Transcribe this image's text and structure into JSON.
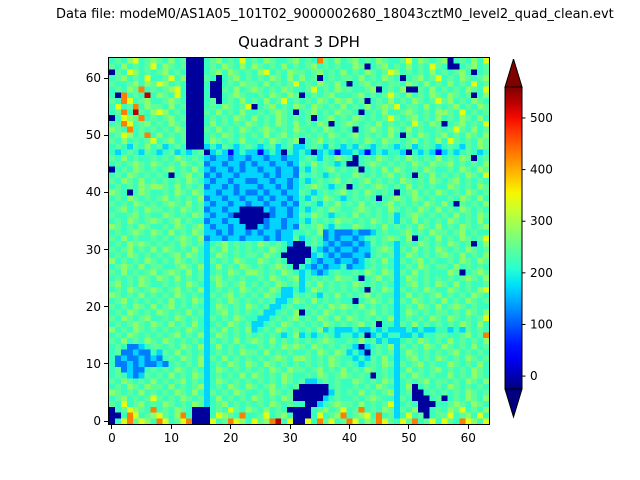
{
  "figure": {
    "annotation": "Data file: modeM0/AS1A05_101T02_9000002680_18043cztM0_level2_quad_clean.evt"
  },
  "chart_data": {
    "type": "heatmap",
    "title": "Quadrant 3 DPH",
    "xlabel": "",
    "ylabel": "",
    "x_ticks": [
      0,
      10,
      20,
      30,
      40,
      50,
      60
    ],
    "y_ticks": [
      0,
      10,
      20,
      30,
      40,
      50,
      60
    ],
    "x_range": [
      0,
      63
    ],
    "y_range": [
      0,
      63
    ],
    "colormap": "jet",
    "vmin": -25,
    "vmax": 560,
    "colorbar": {
      "ticks": [
        0,
        100,
        200,
        300,
        400,
        500
      ],
      "extend": "both"
    },
    "grid": {
      "ncols": 64,
      "nrows": 64,
      "value_map": {
        "N": -10,
        "D": 40,
        "B": 120,
        "m": 170,
        "c": 220,
        "t": 245,
        "g": 280,
        "y": 340,
        "o": 430,
        "r": 530
      },
      "rows_top_to_bottom": [
        "ctcgyctgtcgctNNNctgctcyctcgtcctgctcotcgctgctcgtcctycgtctgNctcgcy",
        "tcgctctycgtctNNNctcgtcgcgtctcgctctgctctccgtNctgctcgctcytcNNctgct",
        "NtcygctctgctcNNNctgcgtctcgyctcgttctgctcgctcgtctygctctcgctctgcNct",
        "ctgctcycctycgNNNtcNctgctctcgtcgcgctNctcttcgctcgtcNctgctyctcgtctg",
        "tcctgcgtygctcNNNcNNctcgttcgctctyctcgtcgcNctgctcttcgtcgctcgctcyct",
        "ctcgtoctctgycNNNcNNtcgctgtctcgtcctyctcgttcctgNctcgNNtcgctctcgtcy",
        "cNoctcrcgtcycNNNcNNctgtcctcgtcgtNctctgccctgctctytcgctcgtcgtctNcg",
        "tcoyctgcctgtcNNNctNctcgctcgctyctctcgtcgtgctNctcgctcgtctytgctcgtc",
        "cyctocgttcgctNNNctcgtctyNctgctcgtcgtctcgctcgctgtycttcgctctgctcgt",
        "ctocrtcgygctcNNNtcgctcgcctctgtcNctgctcgttcNctcgcctgtctcggtcyctct",
        "NcygtoctctgctNNNctctcgtcgctcgtctctNctgctcgtctctytctgctcgctcgtcgc",
        "ctoyctgctcgtcNNNcgctctcgtctcgtcgctcgtNctgtctcgctctcytcgtNctgctcy",
        "gtcoctctctcgtNNNtcgctcgtctgtctcgtctcgtctcNctgtcgtcgctcctctytcgct",
        "ctygctocgctctNNNctcgtctctcgctgctctctcgtctgctctcgcNtcgtctgctcgtcg",
        "tcgctctyctgctNNNcgtctcgcctcgtctgNctgctctctcgtcgttctgctcgcytctcgt",
        "ctcmtcgctmctcNNNmcmtcmctcmctmctmmctcmtcmcmtcmctcmctmctcmctcmtcgt",
        "cmctcmtcmctmcmctNmcmDmcmmDmcmNcmcmNmcmDmmcmDmcmccmNcmcmDmcmctcmc",
        "tcgctcctctcgtctcmBmmBmmBmmBmmBmmctcmtcgtcNctcgtctcgtctcgctcgtNct",
        "ctctgtcgtctcgtctBmmBmmBmBmmBmmBmtcgctcmcNNctgtctctcgtcgttgctctcg",
        "NctcgtctctgctcgcmBmmBmBmmBmmBmmBcmtctgctctNctcgcgtctcgtcctcgtcgt",
        "ctcgtctctcNctgctBmBmmBmmmmBmBmmBtctcmctccgtctctgctcNtcgctctcgtcy",
        "tcgtcgctctctcgtcmBmmBmmBBmmBmmBmcmctctgctctgctctcgtctcgtctgctctc",
        "ctctcgtggtcgctctBmmBmBmmmBmmBmBmctgtcmctNctctgtctcgctctccgtctcgt",
        "gtcNcgtcctcgtcgtmmBmmBmBBmBmmBmmtcmctctgctcgtctcNctgctcgtctcgtct",
        "ctcgtctctgctctcgBmmBmmBmmBmBmmBmcmtcgtcmctctcNctgtcgtctcctcgtcgc",
        "tctcgtctctgtcgctmBmmBmmBmmBmmBmBctcmtcgctcgctctgctctcgtcgcNtctcg",
        "ctgctcgttctcgtctBmmBmmNNNNmBmmBmcmctcgtcctgtctcgtctcgtcgctcgtctc",
        "tcctgctccgtctcgtmBmmBNNNNNNBmmBmtcgtcmctcgctctctmctgtctctcgctcgt",
        "ctcgtctgtctgctccBmmBmmNNNNBmmBmmcmtctcgttctcgtctmtcgctctcgtctcgc",
        "gtctcgtcctcgtctgmBmmBmmNNmBmmBmBtctgcmtccgtctcgctctcgtcgctcgtctg",
        "ctctgtcgtcgctcgtmmBmBmmBmBmmBmmcctcgBmBBBmBBmctcctgctcgttctgctcc",
        "tcgctcctctctgtcgBmmBmmBmmmBmBmmtmctcBmBmmBmctctgtcgNctcgctcgtcty",
        "ctcgtgtctctcgtctmctgctctcgtctcmNNctcmBmBBmBmtctcmctcgtctcgtctNcg",
        "tctgctcgcgtctcgcmtcgctctctcgtcNNNNcmBmBmmBmmctgtmtcgctcgtctcgtct",
        "ctcgtctctctgcgtcmcgtctcttcgtcNNNNNmcmBmBBmmBctctmcgtctctgtcgctcg",
        "gctctcgtctcgtctcmtctcgtccgtctcNNNcmBmmBmmBmctcgcmtctgctcctcgtcgt",
        "ctgtcgcttcctgtcgmcgctcgtctctgtcNcmBmBmmcBmmctctcmctcgtcttcgctctc",
        "tcgctctgctgtcgctmctcgtcggtctcgtcmcmBmctcctcgtcgtmtcgctcccgtNctgt",
        "ctctcgtcgtcgctctmtgctctcctcgtctgmctctcgttcNctgctmcgtctctctctgtcg",
        "tgctcgtcctctcgtcmcgtctgctctcgtctmtcgctctcgtctctcmctgctcgtcgctcct",
        "ctcgtctgtctgctcgmctctcgtctcgtmmcmcgtctctctcNtcgtmtctcgtccgtctcgy",
        "gtctcgctctcgtctcmtctgctctcgtcmmtctcmtcgctctgctccmcgctctgctctcgtc",
        "ctgctctctcgctcgtmctcgtctctctmmcgtcgctctccNctgtctmtcgtctcgctcgtct",
        "tctcgtcgctgctctcmcgtctcgtctmmctcctctcgtgtcgctctcmctcgtcgctgtctcc",
        "ctcgtctcgtctcgctmctgctctctmmctcgNctcgtctctctgctcmcgtctcttctcgtcg",
        "tcgtctgcctcgtctcmtctcgtccmmctctgctcgtcgcgtctctcgmctctcgtcgtctcty",
        "ctctgtcgtcgctcgcmctcgtctmmctcgtctctcgtctctgctNccmtcgctctctcgtcgc",
        "gctcgtctctctcgtcmtcgctcgmctcgtctctcgmcmmmcmmcmcmmmcmcmmccmcmtctc",
        "ctcgtctctctgctcgmcgtctctctctcmcgmcmctcmccmcNmcmccmmcmccttcctgcto",
        "tcgctcgtcgtctctcmtctcgctgtcgctctctctgtcctcgctmcmmctcgtctcgctctcg",
        "ctcBBmcttctcgtcgmcgctctcctctcgtgtcgtctctcmNmctcgmtctcgtcgtctcgct",
        "ctBBmBBcmtcgctctmctctcgttcgctctcctcgtcgtmcmNctctmcgtctctctgctctc",
        "cBmBBmBmBctcgtcgmtcgctctctctgtcggtctcgtccmcmtcgcmctgctcgtctcgtct",
        "cBBmBmBBmBctctcgmctcgtcgtcgtctctctctcgtctcmctcgtmtctgctccgtctcgc",
        "ctBmBBctctcgtctcmcgtctctctcgtcgttctgctcgctcgtctcmcgctctgctctcgtc",
        "ctcmBmtctcgctcgtmctctcgcgtctcgtcctcgtctgtctcNctcmtcgtctccgctcgtc",
        "tcgtctcgctctgctcmcgtctctctctcgtctmmctctccgtctcgtmctctgcttctcgtcg",
        "ctcgtcgttcgctctgmctcgtcgtctgctctNNNNNctcctctcgtcmcgNctctcgtctctc",
        "gtctcgctctcgtcgcmtctcgtcctcgtctNNNNNNmtctcgctctgmctNNctctctcgtct",
        "ctgctctytctcgtctmcgctctcgtctcgtNNNNNmctcctctgtccmtcNNNctNctcgtcg",
        "tcyctgctcgtctcgtmctgctctctcgtctccNNmctgttcgctctymctcNNNcctgtcgtc",
        "NctygtcoctcgtcNNNctcytcgtcgctcNNNNctgctyctoctcgtmtcgNNctcgtyctcg",
        "NNcoyctgytcgocNNNcygtcocctyctgcNNNcyctgoctgycoctmcyctNcttyctgcyc",
        "NcyotygcoyctyoNNNyctoygcytgorcyNNycotyctoycgtoytcytoctycytcoygcy"
      ]
    }
  }
}
